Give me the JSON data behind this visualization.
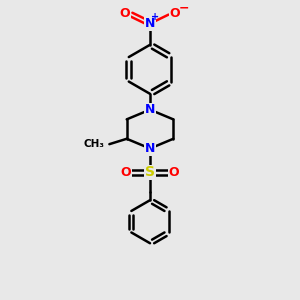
{
  "background_color": "#e8e8e8",
  "bond_color": "#000000",
  "nitrogen_color": "#0000ff",
  "oxygen_color": "#ff0000",
  "sulfur_color": "#cccc00",
  "figsize": [
    3.0,
    3.0
  ],
  "dpi": 100,
  "xlim": [
    0,
    10
  ],
  "ylim": [
    0,
    10
  ],
  "lw": 1.8,
  "font_size": 9
}
